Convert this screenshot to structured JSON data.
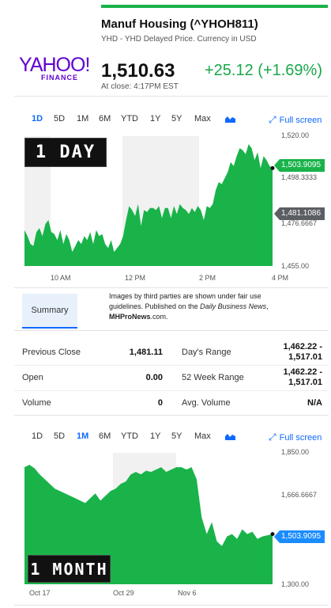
{
  "header": {
    "title": "Manuf Housing (^YHOH811)",
    "subtitle": "YHD - YHD Delayed Price. Currency in USD",
    "price": "1,510.63",
    "change": "+25.12 (+1.69%)",
    "close_time": "At close: 4:17PM EST",
    "logo_main": "YAHOO!",
    "logo_sub": "FINANCE"
  },
  "colors": {
    "up": "#19b34a",
    "accent": "#0f69ff",
    "logo": "#6001d2"
  },
  "range_tabs": [
    "1D",
    "5D",
    "1M",
    "6M",
    "YTD",
    "1Y",
    "5Y",
    "Max"
  ],
  "fullscreen_label": "Full screen",
  "chart_icon": "area-chart-icon",
  "fullscreen_icon": "expand-icon",
  "chart_1d": {
    "active_tab": "1D",
    "badge": "1 DAY",
    "y_ticks": [
      "1,520.00",
      "1,498.3333",
      "1,476.6667",
      "1,455.00"
    ],
    "x_ticks": [
      "10 AM",
      "12 PM",
      "2 PM",
      "4 PM"
    ],
    "current_tag": "1,503.9095",
    "prev_close_tag": "1,481.1086"
  },
  "summary": {
    "tab_label": "Summary",
    "disclaimer_1": "Images by third parties are shown under fair use guidelines.  Published on the ",
    "disclaimer_italic": "Daily Business News",
    "disclaimer_2": ", ",
    "disclaimer_bold": "MHProNews",
    "disclaimer_3": ".com."
  },
  "stats": {
    "prev_close_label": "Previous Close",
    "prev_close_value": "1,481.11",
    "open_label": "Open",
    "open_value": "0.00",
    "volume_label": "Volume",
    "volume_value": "0",
    "days_range_label": "Day's Range",
    "days_range_value_1": "1,462.22 -",
    "days_range_value_2": "1,517.01",
    "week52_label": "52 Week Range",
    "week52_value_1": "1,462.22 -",
    "week52_value_2": "1,517.01",
    "avg_volume_label": "Avg. Volume",
    "avg_volume_value": "N/A"
  },
  "chart_1m": {
    "active_tab": "1M",
    "badge": "1 MONTH",
    "y_ticks": [
      "1,850.00",
      "1,666.6667",
      "1,300.00"
    ],
    "x_ticks": [
      "Oct 17",
      "Oct 29",
      "Nov 6"
    ],
    "current_tag": "1,503.9095"
  },
  "chart_data": [
    {
      "type": "area",
      "series": [
        {
          "values": [
            1473,
            1470,
            1466,
            1465,
            1472,
            1474,
            1470,
            1476,
            1478,
            1472,
            1471,
            1468,
            1473,
            1466,
            1471,
            1468,
            1462,
            1465,
            1468,
            1466,
            1470,
            1468,
            1472,
            1466,
            1473,
            1470,
            1471,
            1466,
            1464,
            1468,
            1462,
            1464,
            1466,
            1470,
            1478,
            1485,
            1483,
            1480,
            1486,
            1475,
            1483,
            1482,
            1484,
            1484,
            1483,
            1485,
            1479,
            1484,
            1484,
            1479,
            1485,
            1481,
            1486,
            1484,
            1483,
            1481,
            1484,
            1482,
            1485,
            1483,
            1478,
            1485,
            1484,
            1486,
            1493,
            1497,
            1496,
            1499,
            1502,
            1507,
            1505,
            1510,
            1514,
            1513,
            1511,
            1516,
            1514,
            1508,
            1512,
            1504,
            1510,
            1508,
            1505,
            1504
          ]
        }
      ],
      "ylim": [
        1455,
        1520
      ],
      "yticks": [
        1520,
        1498.3333,
        1476.6667,
        1455
      ],
      "xticks": [
        "10 AM",
        "12 PM",
        "2 PM",
        "4 PM"
      ],
      "annotations": [
        "1,503.9095",
        "1,481.1086"
      ]
    },
    {
      "type": "area",
      "series": [
        {
          "values": [
            1790,
            1800,
            1785,
            1760,
            1740,
            1720,
            1700,
            1690,
            1680,
            1670,
            1660,
            1650,
            1640,
            1660,
            1680,
            1650,
            1670,
            1690,
            1700,
            1720,
            1730,
            1760,
            1770,
            1760,
            1775,
            1770,
            1780,
            1790,
            1770,
            1780,
            1790,
            1790,
            1780,
            1790,
            1740,
            1580,
            1510,
            1560,
            1480,
            1460,
            1500,
            1510,
            1490,
            1530,
            1510,
            1520,
            1490,
            1500,
            1505,
            1510
          ]
        }
      ],
      "ylim": [
        1300,
        1850
      ],
      "yticks": [
        1850,
        1666.6667,
        1300
      ],
      "xticks": [
        "Oct 17",
        "Oct 29",
        "Nov 6"
      ],
      "annotations": [
        "1,503.9095"
      ]
    }
  ]
}
